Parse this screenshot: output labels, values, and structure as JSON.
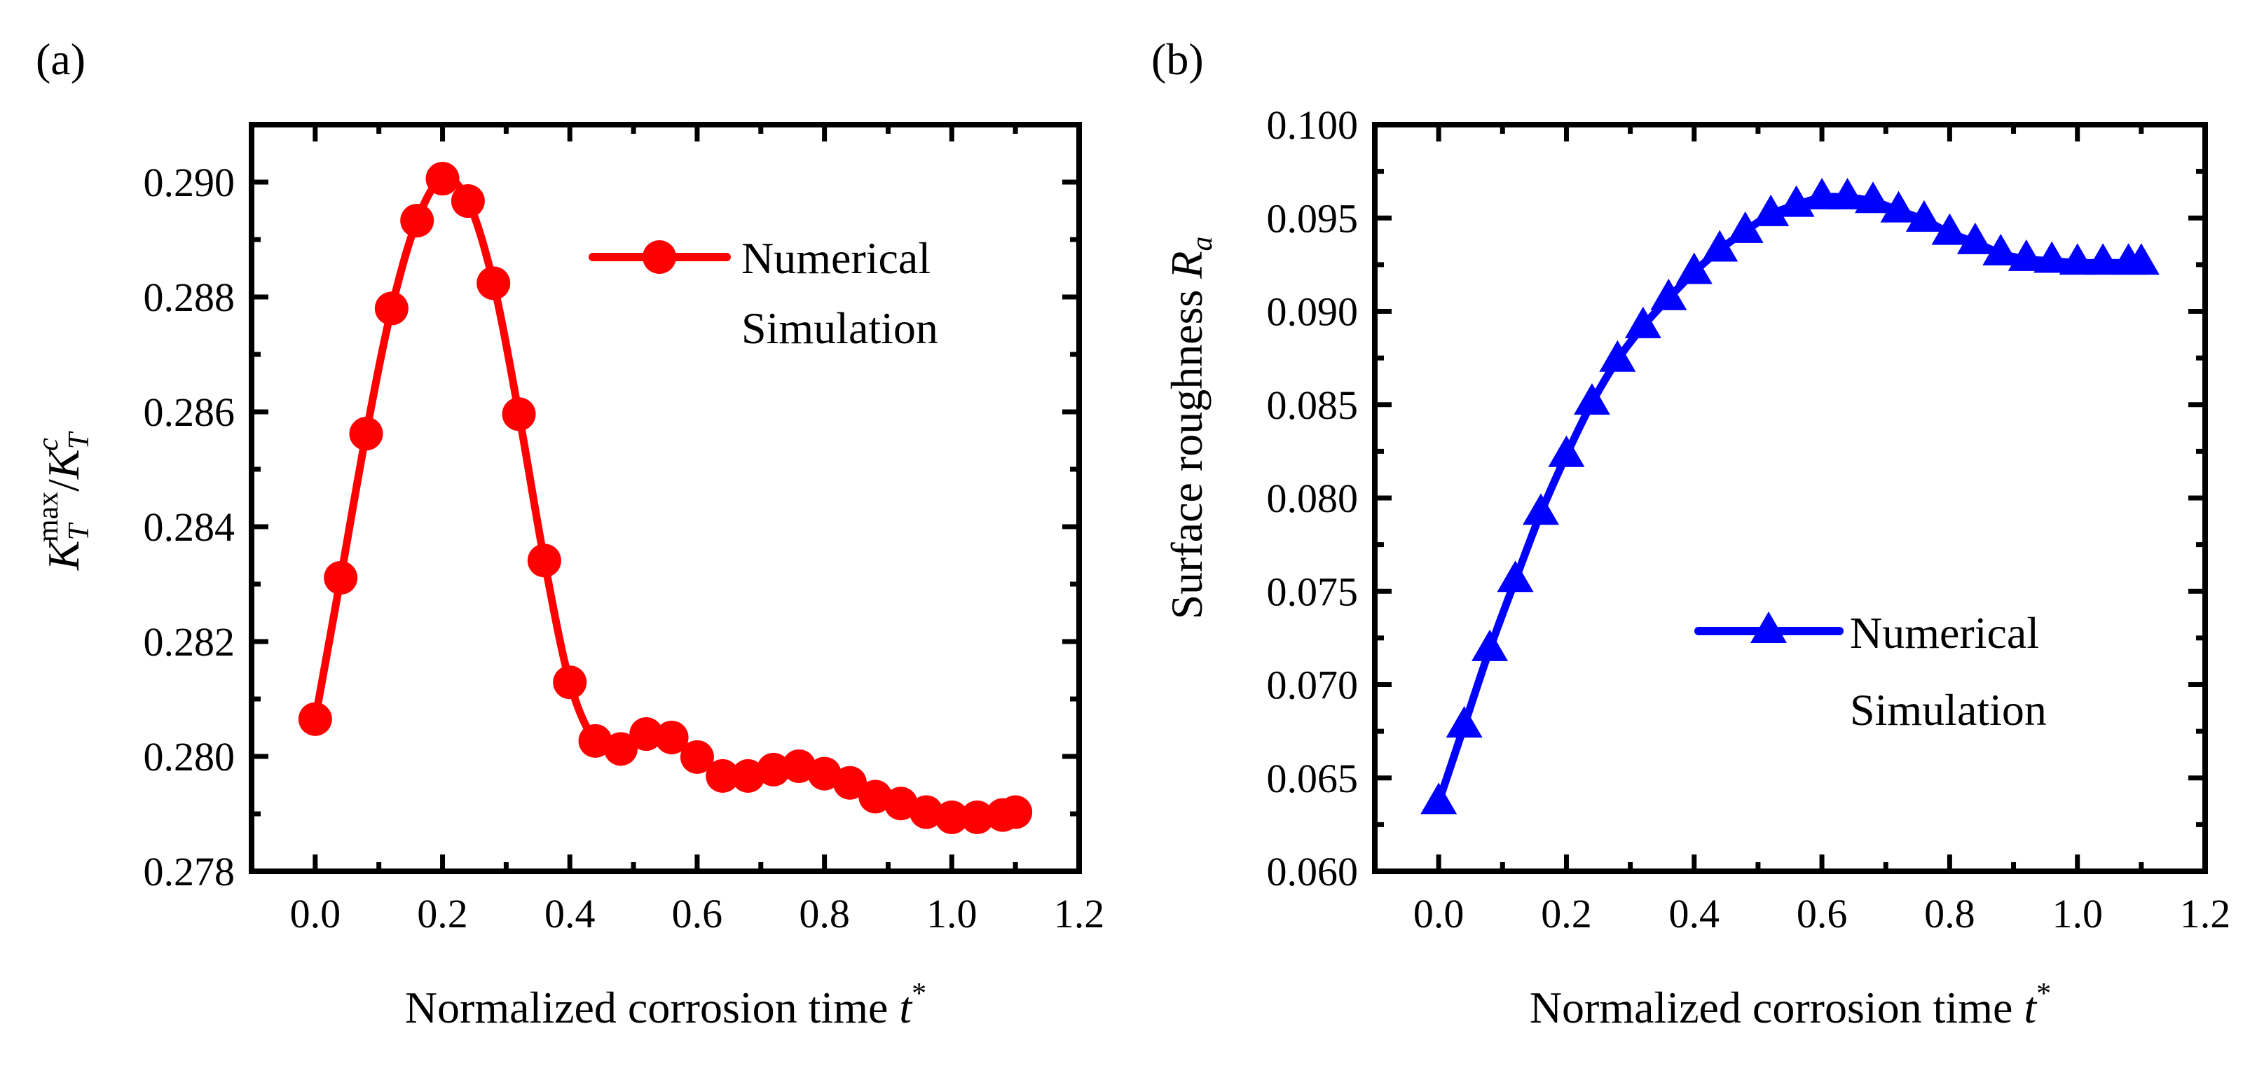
{
  "chart_data": [
    {
      "type": "line",
      "panel_label": "(a)",
      "xlabel": "Normalized corrosion time",
      "xlabel_var": "t",
      "xlabel_sup": "*",
      "ylabel": {
        "base": "K",
        "sub": "T",
        "sup": "max",
        "sep": "/",
        "base2": "K",
        "sub2": "T",
        "sup2": "c"
      },
      "xlim": [
        -0.1,
        1.2
      ],
      "ylim": [
        0.278,
        0.291
      ],
      "xticks": [
        "0.0",
        "0.2",
        "0.4",
        "0.6",
        "0.8",
        "1.0",
        "1.2"
      ],
      "yticks": [
        "0.278",
        "0.280",
        "0.282",
        "0.284",
        "0.286",
        "0.288",
        "0.290"
      ],
      "legend": {
        "line1": "Numerical",
        "line2": "Simulation",
        "placement": "top-right"
      },
      "grid": false,
      "series": [
        {
          "name": "Numerical Simulation",
          "color": "#ff0000",
          "marker": "circle",
          "x": [
            0.0,
            0.04,
            0.08,
            0.12,
            0.16,
            0.2,
            0.24,
            0.28,
            0.32,
            0.36,
            0.4,
            0.44,
            0.48,
            0.52,
            0.56,
            0.6,
            0.64,
            0.68,
            0.72,
            0.76,
            0.8,
            0.84,
            0.88,
            0.92,
            0.96,
            1.0,
            1.04,
            1.08,
            1.1
          ],
          "y": [
            0.28065,
            0.28311,
            0.28562,
            0.2878,
            0.28933,
            0.29006,
            0.28967,
            0.28824,
            0.28596,
            0.28341,
            0.28129,
            0.28027,
            0.28013,
            0.28039,
            0.28033,
            0.27999,
            0.27966,
            0.27966,
            0.27977,
            0.27983,
            0.2797,
            0.27954,
            0.2793,
            0.27918,
            0.27903,
            0.27894,
            0.27894,
            0.27898,
            0.27903
          ]
        }
      ]
    },
    {
      "type": "line",
      "panel_label": "(b)",
      "xlabel": "Normalized corrosion time",
      "xlabel_var": "t",
      "xlabel_sup": "*",
      "ylabel": {
        "text": "Surface roughness",
        "var": "R",
        "sub": "a"
      },
      "xlim": [
        -0.1,
        1.2
      ],
      "ylim": [
        0.06,
        0.1
      ],
      "xticks": [
        "0.0",
        "0.2",
        "0.4",
        "0.6",
        "0.8",
        "1.0",
        "1.2"
      ],
      "yticks": [
        "0.060",
        "0.065",
        "0.070",
        "0.075",
        "0.080",
        "0.085",
        "0.090",
        "0.095",
        "0.100"
      ],
      "legend": {
        "line1": "Numerical",
        "line2": "Simulation",
        "placement": "bottom-right"
      },
      "grid": false,
      "series": [
        {
          "name": "Numerical Simulation",
          "color": "#0000ff",
          "marker": "triangle",
          "x": [
            0.0,
            0.04,
            0.08,
            0.12,
            0.16,
            0.2,
            0.24,
            0.28,
            0.32,
            0.36,
            0.4,
            0.44,
            0.48,
            0.52,
            0.56,
            0.6,
            0.64,
            0.68,
            0.72,
            0.76,
            0.8,
            0.84,
            0.88,
            0.92,
            0.96,
            1.0,
            1.04,
            1.08,
            1.1
          ],
          "y": [
            0.0637,
            0.0678,
            0.0719,
            0.0756,
            0.0792,
            0.0823,
            0.0851,
            0.0874,
            0.0892,
            0.0907,
            0.0921,
            0.0933,
            0.0943,
            0.0952,
            0.0957,
            0.0961,
            0.0961,
            0.0959,
            0.0954,
            0.0949,
            0.0942,
            0.0937,
            0.0931,
            0.0928,
            0.0927,
            0.0926,
            0.0926,
            0.0926,
            0.0926
          ]
        }
      ]
    }
  ]
}
